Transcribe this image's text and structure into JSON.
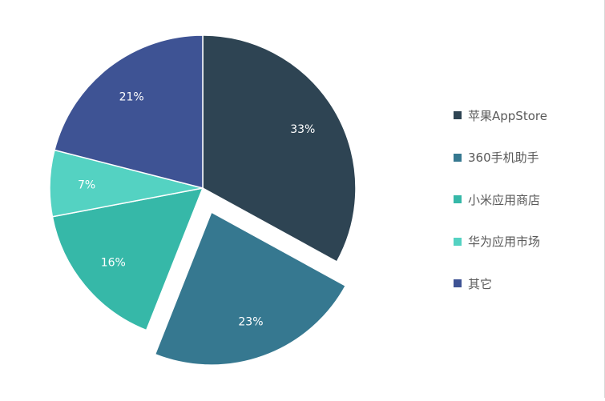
{
  "chart_data": {
    "type": "pie",
    "categories": [
      "苹果AppStore",
      "360手机助手",
      "小米应用商店",
      "华为应用市场",
      "其它"
    ],
    "values": [
      33,
      23,
      16,
      7,
      21
    ],
    "value_labels": [
      "33%",
      "23%",
      "16%",
      "7%",
      "21%"
    ],
    "colors": [
      "#2e4453",
      "#367890",
      "#36b8a8",
      "#54d2c2",
      "#3e5394"
    ],
    "exploded": [
      false,
      true,
      false,
      false,
      false
    ],
    "legend_position": "right",
    "start_angle": "top, clockwise"
  },
  "legend": [
    {
      "label": "苹果AppStore",
      "color": "#2e4453"
    },
    {
      "label": "360手机助手",
      "color": "#367890"
    },
    {
      "label": "小米应用商店",
      "color": "#36b8a8"
    },
    {
      "label": "华为应用市场",
      "color": "#54d2c2"
    },
    {
      "label": "其它",
      "color": "#3e5394"
    }
  ]
}
